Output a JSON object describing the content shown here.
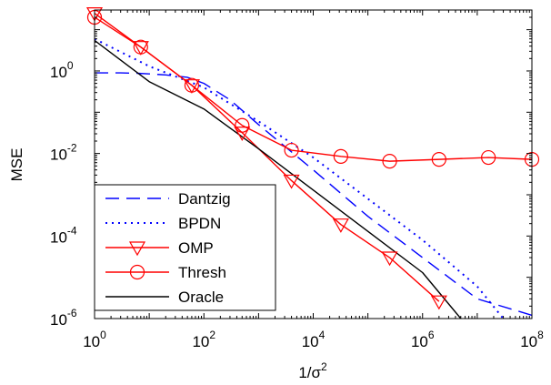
{
  "chart_data": {
    "type": "line",
    "title": "",
    "xlabel": "1/σ²",
    "xlabel_base": "1/σ",
    "xlabel_sup": "2",
    "ylabel": "MSE",
    "xscale": "log",
    "yscale": "log",
    "xlim": [
      1,
      100000000
    ],
    "ylim": [
      1e-06,
      30
    ],
    "grid": false,
    "legend_position": "bottom-left",
    "x_ticks": [
      {
        "base": "10",
        "exp": "0",
        "value": 1
      },
      {
        "base": "10",
        "exp": "2",
        "value": 100
      },
      {
        "base": "10",
        "exp": "4",
        "value": 10000
      },
      {
        "base": "10",
        "exp": "6",
        "value": 1000000
      },
      {
        "base": "10",
        "exp": "8",
        "value": 100000000
      }
    ],
    "y_ticks": [
      {
        "base": "10",
        "exp": "0",
        "value": 1
      },
      {
        "base": "10",
        "exp": "-2",
        "value": 0.01
      },
      {
        "base": "10",
        "exp": "-4",
        "value": 0.0001
      },
      {
        "base": "10",
        "exp": "-6",
        "value": 1e-06
      }
    ],
    "series": [
      {
        "name": "Dantzig",
        "color": "#0000ff",
        "dash": "dashed",
        "marker": "none",
        "x": [
          1,
          3,
          6,
          10,
          20,
          50,
          100,
          300,
          1000,
          10000,
          100000,
          1000000,
          10000000,
          100000000
        ],
        "y": [
          0.9,
          0.9,
          0.88,
          0.85,
          0.8,
          0.7,
          0.5,
          0.2,
          0.05,
          0.004,
          0.0003,
          3e-05,
          3e-06,
          1.2e-06
        ]
      },
      {
        "name": "BPDN",
        "color": "#0000ff",
        "dash": "dotted",
        "marker": "none",
        "x": [
          1,
          10,
          100,
          1000,
          10000,
          100000,
          1000000,
          10000000,
          30000000
        ],
        "y": [
          6,
          1.3,
          0.4,
          0.06,
          0.008,
          0.0008,
          8e-05,
          6e-06,
          1e-06
        ]
      },
      {
        "name": "OMP",
        "color": "#ff0000",
        "dash": "solid",
        "marker": "triangle-down",
        "x": [
          1,
          7,
          60,
          500,
          4000,
          32000,
          250000,
          2000000
        ],
        "y": [
          25,
          3.8,
          0.45,
          0.032,
          0.0022,
          0.00019,
          3e-05,
          2.6e-06
        ]
      },
      {
        "name": "Thresh",
        "color": "#ff0000",
        "dash": "solid",
        "marker": "circle",
        "x": [
          1,
          7,
          60,
          500,
          4000,
          32000,
          250000,
          2000000,
          16000000,
          100000000
        ],
        "y": [
          20,
          3.8,
          0.45,
          0.048,
          0.012,
          0.0085,
          0.0065,
          0.0072,
          0.008,
          0.0072
        ]
      },
      {
        "name": "Oracle",
        "color": "#000000",
        "dash": "solid",
        "marker": "none",
        "x": [
          1,
          10,
          100,
          1000,
          10000,
          100000,
          1000000,
          5000000
        ],
        "y": [
          5.5,
          0.55,
          0.12,
          0.013,
          0.0013,
          0.00013,
          1.3e-05,
          1e-06
        ]
      }
    ]
  }
}
